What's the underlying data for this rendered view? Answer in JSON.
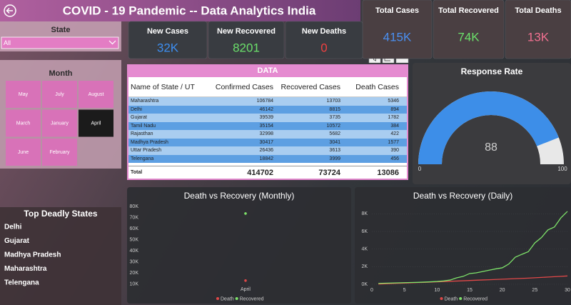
{
  "header": {
    "title": "COVID - 19 Pandemic -- Data Analytics India"
  },
  "cards": [
    {
      "label": "Total Cases",
      "value": "415K",
      "color": "#4a8ff0"
    },
    {
      "label": "Total Recovered",
      "value": "74K",
      "color": "#6be06b"
    },
    {
      "label": "Total Deaths",
      "value": "13K",
      "color": "#f07090"
    },
    {
      "label": "New Cases",
      "value": "32K",
      "color": "#3d8ef0"
    },
    {
      "label": "New Recovered",
      "value": "8201",
      "color": "#6be06b"
    },
    {
      "label": "New Deaths",
      "value": "0",
      "color": "#f04040"
    }
  ],
  "state_slicer": {
    "title": "State",
    "selected": "All"
  },
  "month_slicer": {
    "title": "Month",
    "options": [
      {
        "label": "May",
        "selected": false
      },
      {
        "label": "July",
        "selected": false
      },
      {
        "label": "August",
        "selected": false
      },
      {
        "label": "March",
        "selected": false
      },
      {
        "label": "January",
        "selected": false
      },
      {
        "label": "April",
        "selected": true
      },
      {
        "label": "June",
        "selected": false
      },
      {
        "label": "February",
        "selected": false
      }
    ]
  },
  "table": {
    "title": "DATA",
    "columns": [
      "Name of State / UT",
      "Confirmed Cases",
      "Recovered Cases",
      "Death Cases"
    ],
    "rows": [
      [
        "Maharashtra",
        106784,
        13703,
        5346
      ],
      [
        "Delhi",
        46142,
        8815,
        894
      ],
      [
        "Gujarat",
        39539,
        3735,
        1782
      ],
      [
        "Tamil Nadu",
        35154,
        10572,
        384
      ],
      [
        "Rajasthan",
        32998,
        5682,
        422
      ],
      [
        "Madhya Pradesh",
        30417,
        3041,
        1577
      ],
      [
        "Uttar Pradesh",
        26436,
        3613,
        390
      ],
      [
        "Telengana",
        18842,
        3999,
        456
      ]
    ],
    "total": {
      "label": "Total",
      "values": [
        414702,
        73724,
        13086
      ]
    }
  },
  "gauge": {
    "title": "Response Rate",
    "value": 88,
    "min": 0,
    "max": 100,
    "color": "#3d8ee8"
  },
  "top_states": {
    "title": "Top Deadly States",
    "items": [
      "Delhi",
      "Gujarat",
      "Madhya Pradesh",
      "Maharashtra",
      "Telengana"
    ]
  },
  "charts": [
    {
      "type": "line",
      "title": "Death vs Recovery (Monthly)",
      "categories": [
        "April"
      ],
      "series": [
        {
          "name": "Death",
          "color": "#e04848",
          "values": [
            13086
          ]
        },
        {
          "name": "Recovered",
          "color": "#7ee36a",
          "values": [
            73724
          ]
        }
      ],
      "ylim": [
        6500,
        84000
      ],
      "yticks": [
        {
          "value": 10000,
          "label": "10K"
        },
        {
          "value": 20000,
          "label": "20K"
        },
        {
          "value": 30000,
          "label": "30K"
        },
        {
          "value": 40000,
          "label": "40K"
        },
        {
          "value": 50000,
          "label": "50K"
        },
        {
          "value": 60000,
          "label": "60K"
        },
        {
          "value": 70000,
          "label": "70K"
        },
        {
          "value": 80000,
          "label": "80K"
        }
      ],
      "markers": true,
      "grid": false,
      "legend": "bottom"
    },
    {
      "type": "line",
      "title": "Death vs Recovery (Daily)",
      "x": [
        1,
        2,
        3,
        4,
        5,
        6,
        7,
        8,
        9,
        10,
        11,
        12,
        13,
        14,
        15,
        16,
        17,
        18,
        19,
        20,
        21,
        22,
        23,
        24,
        25,
        26,
        27,
        28,
        29,
        30
      ],
      "series": [
        {
          "name": "Death",
          "color": "#e04848",
          "values": [
            20,
            50,
            80,
            110,
            130,
            160,
            190,
            220,
            250,
            280,
            310,
            340,
            370,
            400,
            430,
            460,
            490,
            520,
            550,
            580,
            610,
            640,
            670,
            700,
            740,
            780,
            820,
            860,
            900,
            950
          ]
        },
        {
          "name": "Recovered",
          "color": "#7ee36a",
          "values": [
            100,
            120,
            140,
            160,
            180,
            200,
            220,
            250,
            280,
            320,
            380,
            480,
            730,
            900,
            1220,
            1300,
            1450,
            1600,
            1750,
            1870,
            2300,
            3080,
            3400,
            3700,
            4700,
            5300,
            6170,
            6500,
            7550,
            8280
          ]
        }
      ],
      "xlim": [
        0,
        30
      ],
      "xticks": [
        0,
        5,
        10,
        15,
        20,
        25,
        30
      ],
      "ylim": [
        0,
        8600
      ],
      "yticks": [
        {
          "value": 0,
          "label": "0K"
        },
        {
          "value": 2000,
          "label": "2K"
        },
        {
          "value": 4000,
          "label": "4K"
        },
        {
          "value": 6000,
          "label": "6K"
        },
        {
          "value": 8000,
          "label": "8K"
        }
      ],
      "markers": false,
      "grid": true,
      "legend": "bottom"
    }
  ]
}
